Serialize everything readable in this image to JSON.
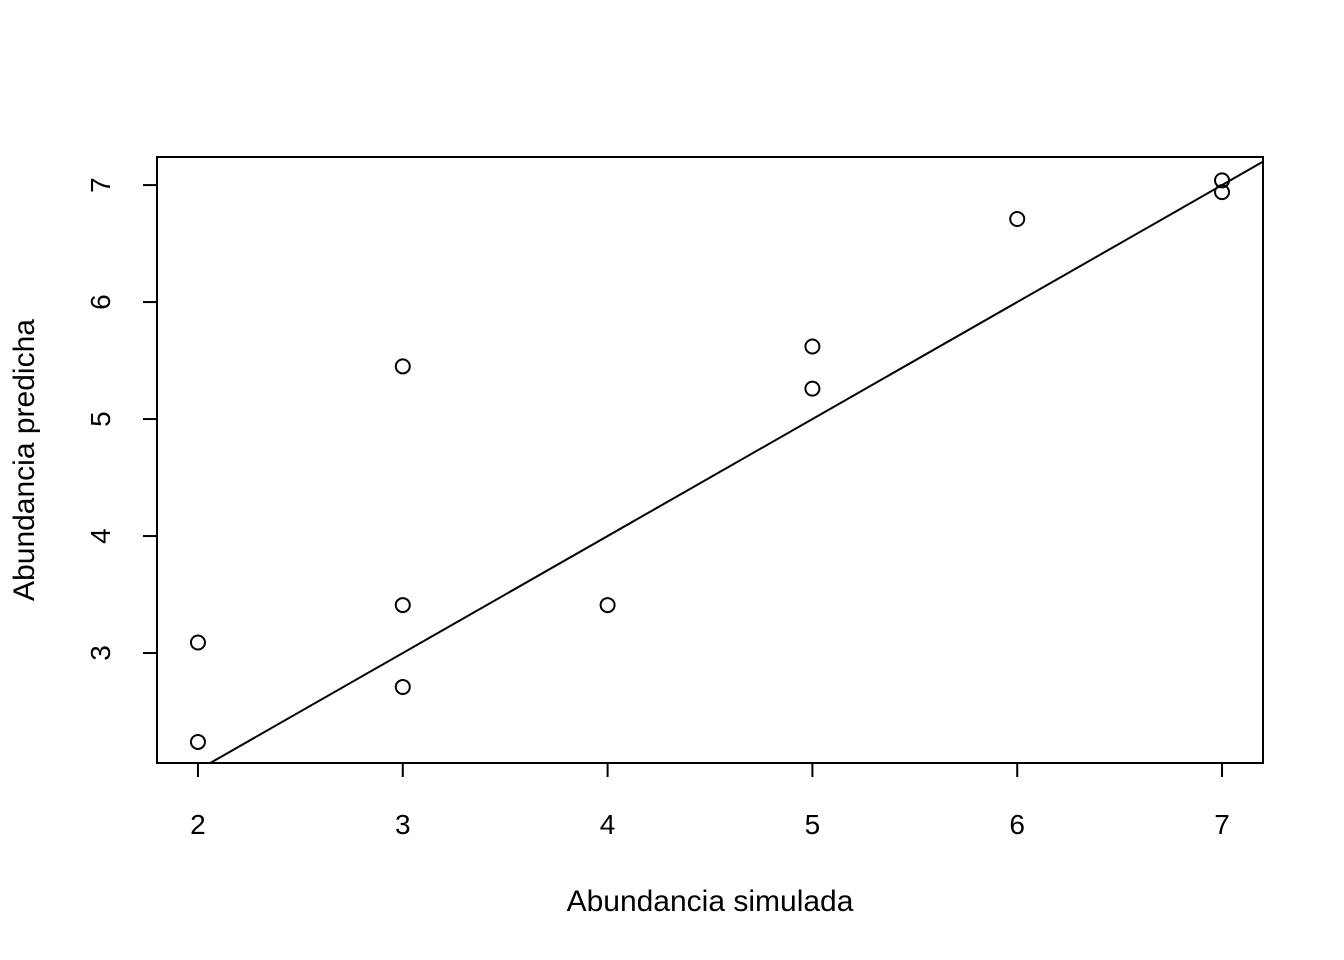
{
  "chart_data": {
    "type": "scatter",
    "xlabel": "Abundancia simulada",
    "ylabel": "Abundancia predicha",
    "xlim": [
      1.8,
      7.2
    ],
    "ylim": [
      2.06,
      7.24
    ],
    "x_ticks": [
      2,
      3,
      4,
      5,
      6,
      7
    ],
    "y_ticks": [
      3,
      4,
      5,
      6,
      7
    ],
    "grid": false,
    "points": [
      {
        "x": 2,
        "y": 3.09
      },
      {
        "x": 2,
        "y": 2.24
      },
      {
        "x": 3,
        "y": 5.45
      },
      {
        "x": 3,
        "y": 3.41
      },
      {
        "x": 3,
        "y": 2.71
      },
      {
        "x": 4,
        "y": 3.41
      },
      {
        "x": 5,
        "y": 5.62
      },
      {
        "x": 5,
        "y": 5.26
      },
      {
        "x": 6,
        "y": 6.71
      },
      {
        "x": 7,
        "y": 7.04
      },
      {
        "x": 7,
        "y": 6.94
      }
    ],
    "reference_line": {
      "intercept": 0,
      "slope": 1
    }
  }
}
